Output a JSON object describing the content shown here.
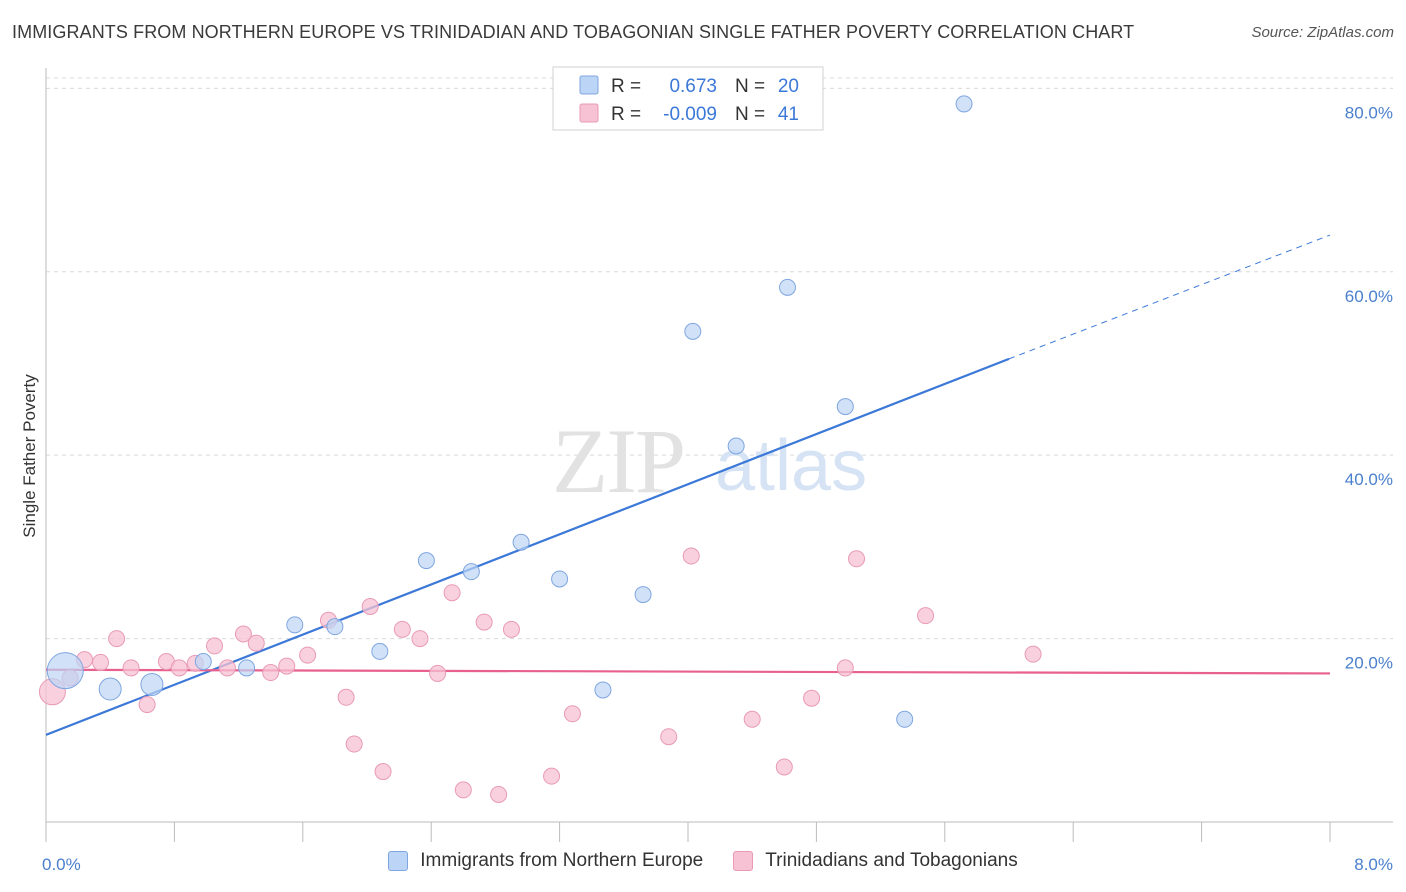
{
  "title": "IMMIGRANTS FROM NORTHERN EUROPE VS TRINIDADIAN AND TOBAGONIAN SINGLE FATHER POVERTY CORRELATION CHART",
  "source": "Source: ZipAtlas.com",
  "watermark": {
    "zip": "ZIP",
    "atlas": "atlas"
  },
  "colors": {
    "blue": "#3b78d8",
    "blue_fill": "#bcd4f5",
    "blue_stroke": "#7fa6e0",
    "pink": "#e8608f",
    "pink_fill": "#f7c2d3",
    "pink_stroke": "#e99ab6",
    "grid": "#d9d9d9",
    "tick_text": "#4a7fcc"
  },
  "legend": {
    "rows": [
      {
        "r_label": "R =",
        "r_value": "0.673",
        "n_label": "N =",
        "n_value": "20"
      },
      {
        "r_label": "R =",
        "r_value": "-0.009",
        "n_label": "N =",
        "n_value": "41"
      }
    ]
  },
  "bottom_legend": {
    "items": [
      {
        "label": "Immigrants from Northern Europe"
      },
      {
        "label": "Trinidadians and Tobagonians"
      }
    ]
  },
  "chart_data": {
    "type": "scatter",
    "title": "IMMIGRANTS FROM NORTHERN EUROPE VS TRINIDADIAN AND TOBAGONIAN SINGLE FATHER POVERTY CORRELATION CHART",
    "xlabel": "",
    "ylabel": "Single Father Poverty",
    "xlim": [
      0,
      8
    ],
    "ylim": [
      0,
      82
    ],
    "x_tick_labels": [
      "0.0%",
      "8.0%"
    ],
    "y_ticks": [
      20,
      40,
      60,
      80
    ],
    "y_tick_labels": [
      "20.0%",
      "40.0%",
      "60.0%",
      "80.0%"
    ],
    "grid": true,
    "legend_position": "top-center",
    "series": [
      {
        "name": "Immigrants from Northern Europe",
        "color": "#3b78d8",
        "r": 0.673,
        "n": 20,
        "points": [
          {
            "x": 0.12,
            "y": 16.5,
            "big": true
          },
          {
            "x": 0.4,
            "y": 14.5
          },
          {
            "x": 0.66,
            "y": 15.0
          },
          {
            "x": 0.98,
            "y": 17.5
          },
          {
            "x": 1.25,
            "y": 16.8
          },
          {
            "x": 1.55,
            "y": 21.5
          },
          {
            "x": 1.8,
            "y": 21.3
          },
          {
            "x": 2.08,
            "y": 18.6
          },
          {
            "x": 2.37,
            "y": 28.5
          },
          {
            "x": 2.65,
            "y": 27.3
          },
          {
            "x": 2.96,
            "y": 30.5
          },
          {
            "x": 3.2,
            "y": 26.5
          },
          {
            "x": 3.47,
            "y": 14.4
          },
          {
            "x": 3.72,
            "y": 24.8
          },
          {
            "x": 4.03,
            "y": 53.5
          },
          {
            "x": 4.3,
            "y": 41.0
          },
          {
            "x": 4.62,
            "y": 58.3
          },
          {
            "x": 4.98,
            "y": 45.3
          },
          {
            "x": 5.35,
            "y": 11.2
          },
          {
            "x": 5.72,
            "y": 78.3
          }
        ],
        "trend": {
          "x": [
            0,
            6.0
          ],
          "y": [
            9.5,
            50.5
          ],
          "dashed_to": [
            8.0,
            64.0
          ]
        }
      },
      {
        "name": "Trinidadians and Tobagonians",
        "color": "#e8608f",
        "r": -0.009,
        "n": 41,
        "points": [
          {
            "x": 0.04,
            "y": 14.2,
            "big": true
          },
          {
            "x": 0.15,
            "y": 15.7
          },
          {
            "x": 0.24,
            "y": 17.7
          },
          {
            "x": 0.34,
            "y": 17.4
          },
          {
            "x": 0.44,
            "y": 20.0
          },
          {
            "x": 0.53,
            "y": 16.8
          },
          {
            "x": 0.63,
            "y": 12.8
          },
          {
            "x": 0.75,
            "y": 17.5
          },
          {
            "x": 0.83,
            "y": 16.8
          },
          {
            "x": 0.93,
            "y": 17.3
          },
          {
            "x": 1.05,
            "y": 19.2
          },
          {
            "x": 1.13,
            "y": 16.8
          },
          {
            "x": 1.23,
            "y": 20.5
          },
          {
            "x": 1.31,
            "y": 19.5
          },
          {
            "x": 1.4,
            "y": 16.3
          },
          {
            "x": 1.5,
            "y": 17.0
          },
          {
            "x": 1.63,
            "y": 18.2
          },
          {
            "x": 1.76,
            "y": 22.0
          },
          {
            "x": 1.87,
            "y": 13.6
          },
          {
            "x": 1.92,
            "y": 8.5
          },
          {
            "x": 2.02,
            "y": 23.5
          },
          {
            "x": 2.1,
            "y": 5.5
          },
          {
            "x": 2.22,
            "y": 21.0
          },
          {
            "x": 2.33,
            "y": 20.0
          },
          {
            "x": 2.44,
            "y": 16.2
          },
          {
            "x": 2.53,
            "y": 25.0
          },
          {
            "x": 2.6,
            "y": 3.5
          },
          {
            "x": 2.73,
            "y": 21.8
          },
          {
            "x": 2.82,
            "y": 3.0
          },
          {
            "x": 2.9,
            "y": 21.0
          },
          {
            "x": 3.15,
            "y": 5.0
          },
          {
            "x": 3.28,
            "y": 11.8
          },
          {
            "x": 3.88,
            "y": 9.3
          },
          {
            "x": 4.02,
            "y": 29.0
          },
          {
            "x": 4.4,
            "y": 11.2
          },
          {
            "x": 4.6,
            "y": 6.0
          },
          {
            "x": 4.77,
            "y": 13.5
          },
          {
            "x": 4.98,
            "y": 16.8
          },
          {
            "x": 5.05,
            "y": 28.7
          },
          {
            "x": 5.48,
            "y": 22.5
          },
          {
            "x": 6.15,
            "y": 18.3
          }
        ],
        "trend": {
          "x": [
            0,
            8.0
          ],
          "y": [
            16.6,
            16.2
          ]
        }
      }
    ]
  }
}
